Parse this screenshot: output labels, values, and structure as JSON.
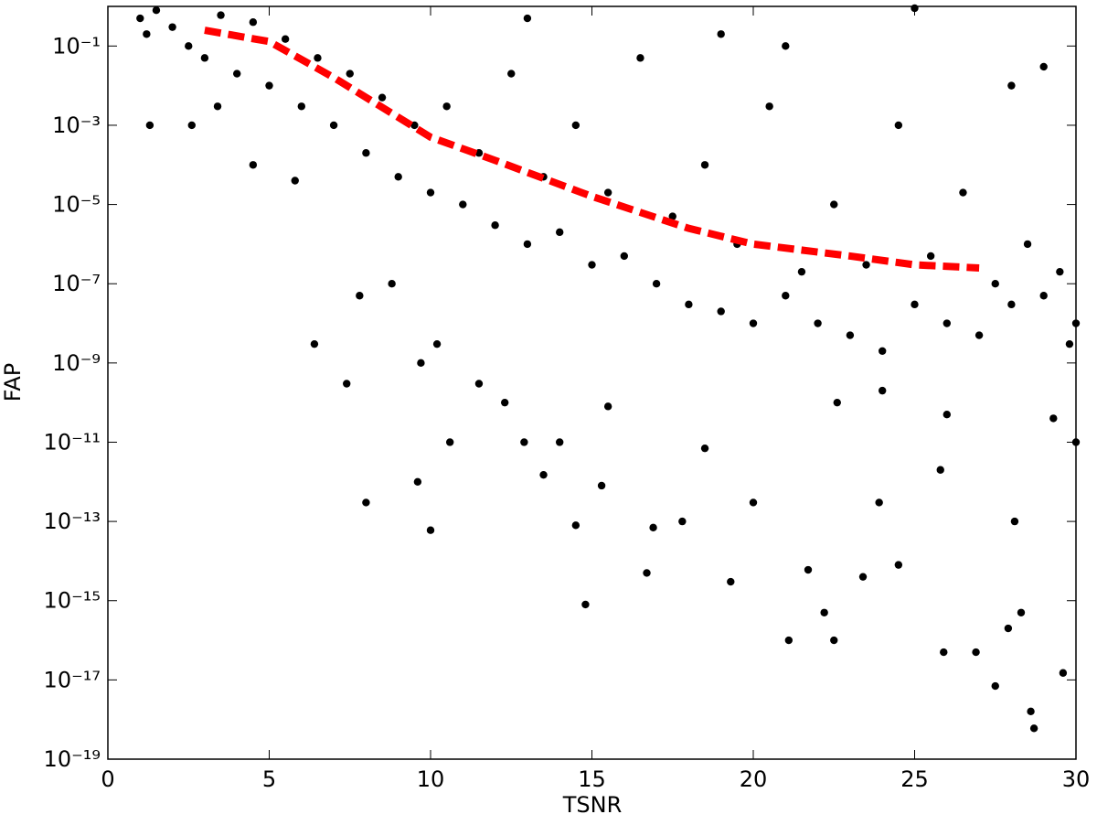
{
  "chart_data": {
    "type": "scatter",
    "xlabel": "TSNR",
    "ylabel": "FAP",
    "xlim": [
      0,
      30
    ],
    "xticks": [
      0,
      5,
      10,
      15,
      20,
      25,
      30
    ],
    "ylim": [
      1e-19,
      1
    ],
    "log_y": true,
    "yticks": [
      {
        "value": 1e-19,
        "label": "10⁻¹⁹"
      },
      {
        "value": 1e-17,
        "label": "10⁻¹⁷"
      },
      {
        "value": 1e-15,
        "label": "10⁻¹⁵"
      },
      {
        "value": 1e-13,
        "label": "10⁻¹³"
      },
      {
        "value": 1e-11,
        "label": "10⁻¹¹"
      },
      {
        "value": 1e-09,
        "label": "10⁻⁹"
      },
      {
        "value": 1e-07,
        "label": "10⁻⁷"
      },
      {
        "value": 1e-05,
        "label": "10⁻⁵"
      },
      {
        "value": 0.001,
        "label": "10⁻³"
      },
      {
        "value": 0.1,
        "label": "10⁻¹"
      }
    ],
    "series": [
      {
        "mark": "dots",
        "color": "#000000",
        "x": [
          1.3,
          2.6,
          6.4,
          7.4,
          8.0,
          9.6,
          10.0,
          10.6,
          14.8,
          14.5,
          16.7,
          16.9,
          19.3,
          21.1,
          22.5,
          22.2,
          25.9,
          26.9,
          27.5,
          28.6,
          28.7,
          29.6,
          27.9,
          28.3,
          23.4,
          24.5,
          21.7,
          11.5,
          12.3,
          13.5,
          15.3,
          17.8,
          20.0,
          23.9,
          25.8,
          28.1,
          29.3,
          30.0,
          26.0,
          24.0,
          22.6,
          18.5,
          15.5,
          14.0,
          12.9,
          10.2,
          9.7,
          8.8,
          7.8,
          5.8,
          4.5,
          3.4,
          1.0,
          1.2,
          1.5,
          2,
          2.5,
          3,
          3.5,
          4,
          4.5,
          5,
          5.5,
          6,
          6.5,
          7,
          7.5,
          8,
          8.5,
          9,
          9.5,
          10,
          10.5,
          11,
          11.5,
          12,
          12.5,
          13,
          13.5,
          14,
          14.5,
          15,
          15.5,
          16,
          16.5,
          17,
          17.5,
          18,
          18.5,
          19,
          19.5,
          20,
          20.5,
          21,
          21.5,
          22,
          22.5,
          23,
          23.5,
          24,
          24.5,
          25,
          25.5,
          26,
          26.5,
          27,
          27.5,
          28,
          28.5,
          29,
          29.5,
          29.8,
          30,
          21,
          25,
          29,
          28,
          19,
          13
        ],
        "values": [
          0.001,
          0.001,
          3e-09,
          3e-10,
          3e-13,
          1e-12,
          6e-14,
          1e-11,
          8e-16,
          8e-14,
          5e-15,
          7e-14,
          3e-15,
          1e-16,
          1e-16,
          5e-16,
          5e-17,
          5e-17,
          7e-18,
          1.6e-18,
          6e-19,
          1.5e-17,
          2e-16,
          5e-16,
          4e-15,
          8e-15,
          6e-15,
          3e-10,
          1e-10,
          1.5e-12,
          8e-13,
          1e-13,
          3e-13,
          3e-13,
          2e-12,
          1e-13,
          4e-11,
          1e-11,
          5e-11,
          2e-10,
          1e-10,
          7e-12,
          8e-11,
          1e-11,
          1e-11,
          3e-09,
          1e-09,
          1e-07,
          5e-08,
          4e-05,
          0.0001,
          0.003,
          0.5,
          0.2,
          0.8,
          0.3,
          0.1,
          0.05,
          0.6,
          0.02,
          0.4,
          0.01,
          0.15,
          0.003,
          0.05,
          0.001,
          0.02,
          0.0002,
          0.005,
          5e-05,
          0.001,
          2e-05,
          0.003,
          1e-05,
          0.0002,
          3e-06,
          0.02,
          1e-06,
          5e-05,
          2e-06,
          0.001,
          3e-07,
          2e-05,
          5e-07,
          0.05,
          1e-07,
          5e-06,
          3e-08,
          0.0001,
          2e-08,
          1e-06,
          1e-08,
          0.003,
          5e-08,
          2e-07,
          1e-08,
          1e-05,
          5e-09,
          3e-07,
          2e-09,
          0.001,
          3e-08,
          5e-07,
          1e-08,
          2e-05,
          5e-09,
          1e-07,
          3e-08,
          1e-06,
          5e-08,
          2e-07,
          3e-09,
          1e-08,
          0.1,
          0.9,
          0.03,
          0.01,
          0.2,
          0.5
        ]
      },
      {
        "mark": "dashed-line",
        "color": "#ff0000",
        "x": [
          3,
          5,
          7,
          10,
          12,
          15,
          18,
          20,
          23,
          25,
          27
        ],
        "values": [
          0.25,
          0.13,
          0.016,
          0.0005,
          0.00013,
          1.6e-05,
          2.5e-06,
          1e-06,
          5e-07,
          3e-07,
          2.5e-07
        ]
      }
    ]
  }
}
